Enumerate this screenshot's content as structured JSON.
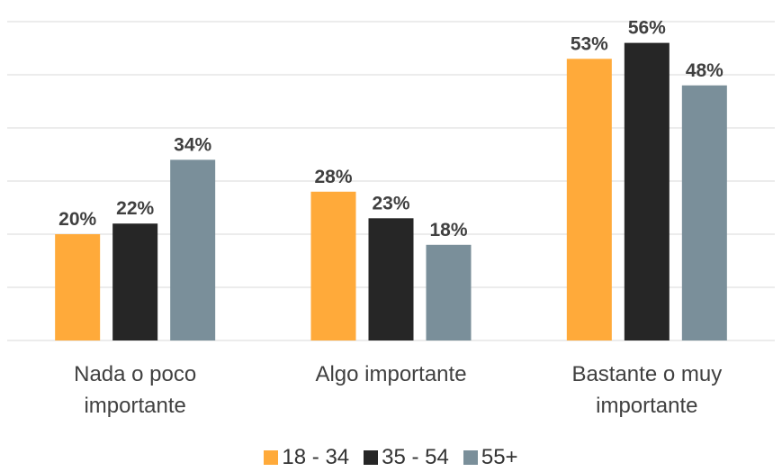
{
  "chart_data": {
    "type": "bar",
    "categories": [
      [
        "Nada o poco",
        "importante"
      ],
      [
        "Algo importante"
      ],
      [
        "Bastante o muy",
        "importante"
      ]
    ],
    "series": [
      {
        "name": "18 - 34",
        "values": [
          20,
          28,
          53
        ],
        "labels": [
          "20%",
          "28%",
          "53%"
        ],
        "color": "#FFAA3A"
      },
      {
        "name": "35 - 54",
        "values": [
          22,
          23,
          56
        ],
        "labels": [
          "22%",
          "23%",
          "56%"
        ],
        "color": "#262626"
      },
      {
        "name": "55+",
        "values": [
          34,
          18,
          48
        ],
        "labels": [
          "34%",
          "18%",
          "48%"
        ],
        "color": "#7A8F9A"
      }
    ],
    "ylim": [
      0,
      60
    ],
    "gridlines": [
      0,
      10,
      20,
      30,
      40,
      50,
      60
    ],
    "grid": true,
    "legend": "bottom"
  }
}
